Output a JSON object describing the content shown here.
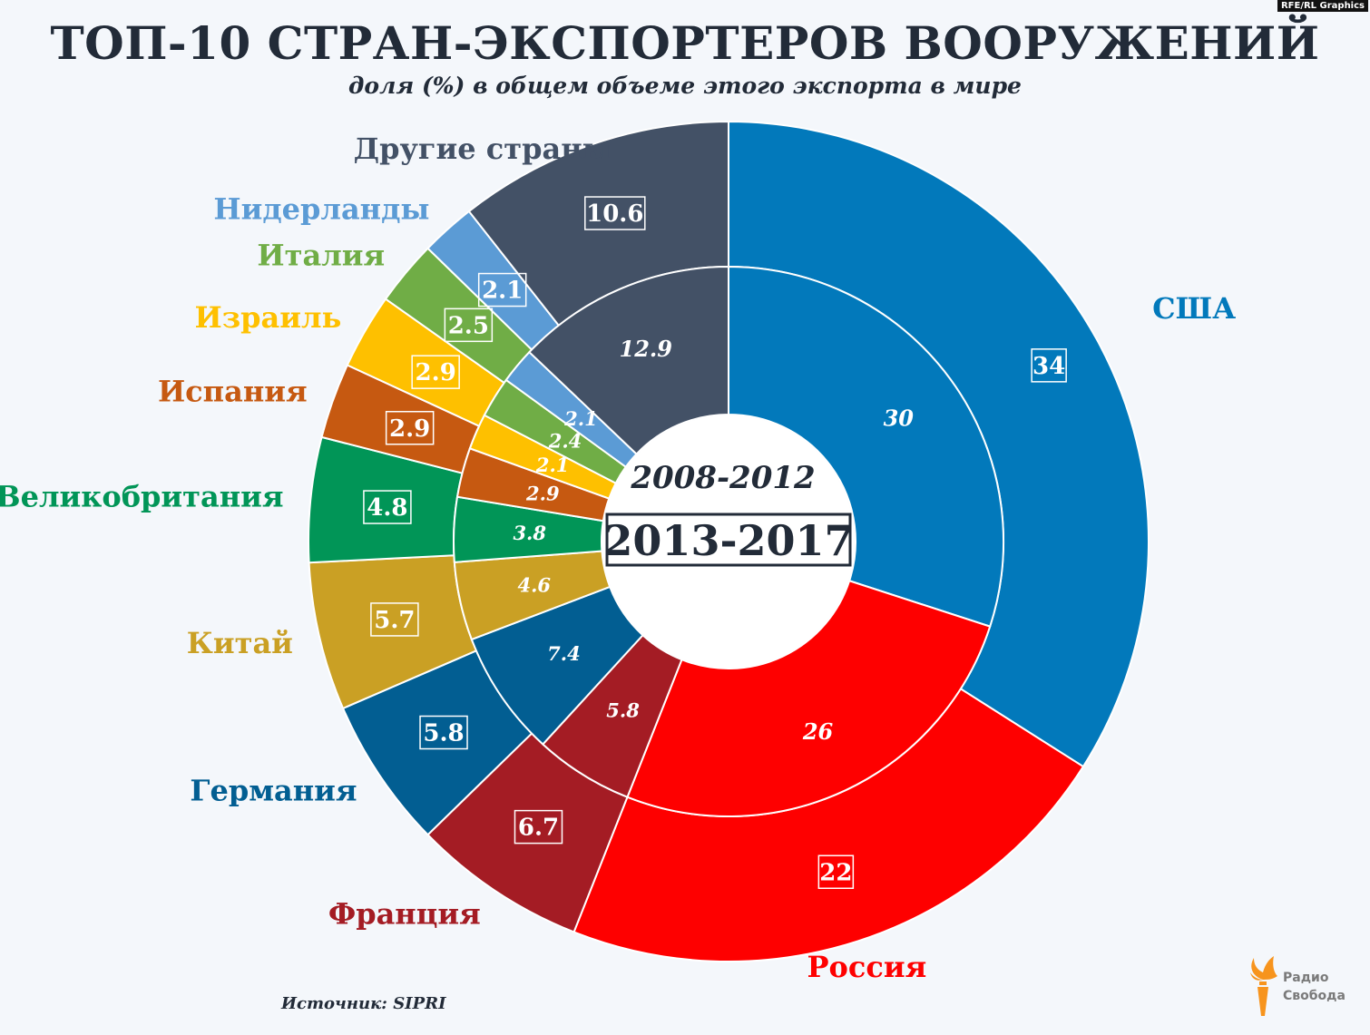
{
  "badge": "RFE/RL Graphics",
  "title": "ТОП-10 СТРАН-ЭКСПОРТЕРОВ ВООРУЖЕНИЙ",
  "subtitle": "доля (%) в общем объеме этого экспорта в мире",
  "source": "Источник: SIPRI",
  "logo": {
    "line1": "Радио",
    "line2": "Свобода",
    "icon": "torch-flame-icon"
  },
  "chart_data": {
    "type": "donut",
    "inner_ring_label": "2008-2012",
    "outer_ring_label": "2013-2017",
    "unit": "%",
    "series": [
      {
        "name": "2013-2017",
        "ring": "outer"
      },
      {
        "name": "2008-2012",
        "ring": "inner"
      }
    ],
    "countries": [
      {
        "name": "США",
        "color": "#0279bb",
        "outer": 34,
        "inner": 30
      },
      {
        "name": "Россия",
        "color": "#fe0000",
        "outer": 22,
        "inner": 26
      },
      {
        "name": "Франция",
        "color": "#a41c24",
        "outer": 6.7,
        "inner": 5.8
      },
      {
        "name": "Германия",
        "color": "#025e92",
        "outer": 5.8,
        "inner": 7.4
      },
      {
        "name": "Китай",
        "color": "#caa024",
        "outer": 5.7,
        "inner": 4.6
      },
      {
        "name": "Великобритания",
        "color": "#019557",
        "outer": 4.8,
        "inner": 3.8
      },
      {
        "name": "Испания",
        "color": "#c65911",
        "outer": 2.9,
        "inner": 2.9
      },
      {
        "name": "Израиль",
        "color": "#fec000",
        "outer": 2.9,
        "inner": 2.1
      },
      {
        "name": "Италия",
        "color": "#70ad46",
        "outer": 2.5,
        "inner": 2.4
      },
      {
        "name": "Нидерланды",
        "color": "#5b9bd5",
        "outer": 2.1,
        "inner": 2.1
      },
      {
        "name": "Другие страны",
        "color": "#435166",
        "outer": 10.6,
        "inner": 12.9
      }
    ]
  }
}
